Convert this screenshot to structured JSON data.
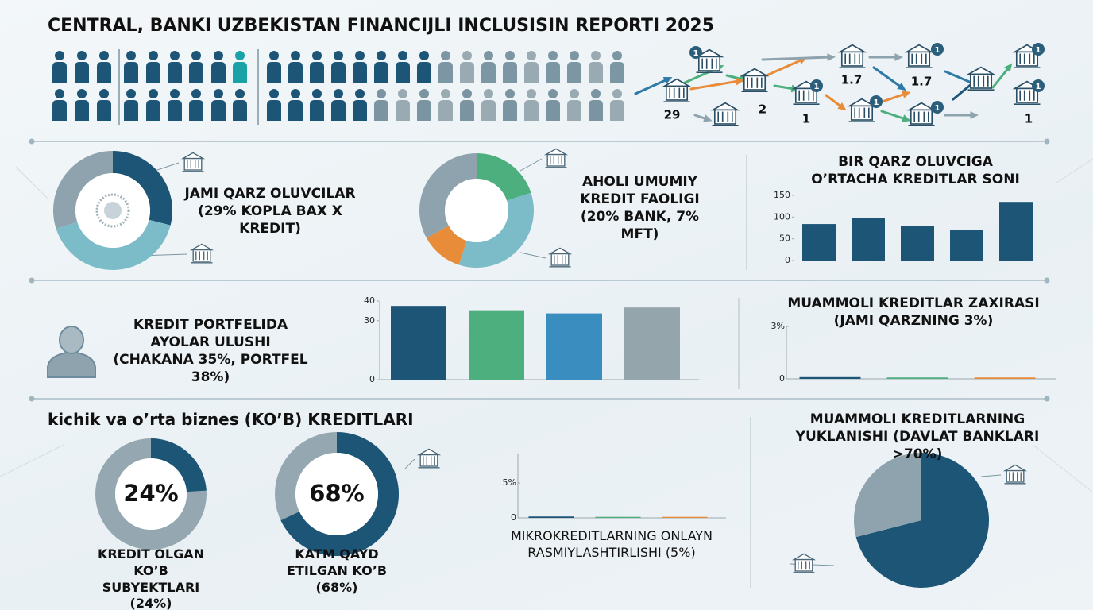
{
  "title": "CENTRAL, BANKI UZBEKISTAN FINANCIJLI INCLUSISIN REPORTI 2025",
  "network": {
    "labels": [
      "29",
      "2",
      "1",
      "1.7",
      "1.7",
      "1"
    ],
    "badges": [
      "1",
      "1",
      "1",
      "1",
      "1",
      "1",
      "1"
    ]
  },
  "section_heading": "kichik va o’rta biznes (KO’B) KREDITLARI",
  "chart_data": [
    {
      "type": "donut",
      "title": "JAMI QARZ OLUVCILAR (29% KOPLA BAX X KREDIT)",
      "values": [
        29,
        41,
        30
      ],
      "colors": [
        "#1d5577",
        "#7cbcc8",
        "#8ea3ad"
      ]
    },
    {
      "type": "donut",
      "title": "AHOLI UMUMIY KREDIT FAOLIGI (20% BANK, 7% MFT)",
      "values": [
        20,
        35,
        12,
        33
      ],
      "colors": [
        "#4caf7d",
        "#7cbcc8",
        "#e98c3a",
        "#8ea3ad"
      ]
    },
    {
      "type": "bar",
      "title": "BIR QARZ OLUVCIGA O’RTACHA KREDITLAR SONI",
      "values": [
        84,
        97,
        80,
        71,
        135
      ],
      "colors": [
        "#1d5577",
        "#1d5577",
        "#1d5577",
        "#1d5577",
        "#1d5577"
      ],
      "ylim": [
        0,
        150
      ],
      "yticks": [
        0,
        50,
        100,
        150
      ]
    },
    {
      "type": "bar",
      "title": "KREDIT PORTFELIDA AYOLAR ULUSHI (CHAKANA 35%, PORTFEL 38%)",
      "values": [
        37.5,
        35.3,
        33.7,
        36.7
      ],
      "colors": [
        "#1d5577",
        "#4caf7d",
        "#3a8dbf",
        "#95a5ac"
      ],
      "ylim": [
        0,
        40
      ],
      "yticks": [
        0,
        30,
        40
      ]
    },
    {
      "type": "bar",
      "title": "MUAMMOLI KREDITLAR ZAXIRASI (JAMI QARZNING 3%)",
      "values": [
        0.1,
        0.08,
        0.08
      ],
      "colors": [
        "#1d5577",
        "#4caf7d",
        "#e98c3a"
      ],
      "ylim": [
        0,
        3
      ],
      "yticks": [
        0,
        {
          "value": 3,
          "label": "3%"
        }
      ]
    },
    {
      "type": "gauge",
      "title": "KREDIT OLGAN KO’B SUBYEKTLARI (24%)",
      "values": [
        24
      ],
      "value_labels": [
        "24%"
      ],
      "colors": [
        "#1d5577"
      ],
      "track_color": "#95a8b1"
    },
    {
      "type": "gauge",
      "title": "KATM QAYD ETILGAN KO’B (68%)",
      "values": [
        68
      ],
      "value_labels": [
        "68%"
      ],
      "colors": [
        "#1d5577"
      ],
      "track_color": "#95a8b1"
    },
    {
      "type": "bar",
      "title": "MIKROKREDITLARNING ONLAYN RASMIYLASHTIRLISHI (5%)",
      "values": [
        0.2,
        0.15,
        0.15
      ],
      "colors": [
        "#1d5577",
        "#4caf7d",
        "#e98c3a"
      ],
      "ylim": [
        0,
        5
      ],
      "yticks": [
        0,
        {
          "value": 5,
          "label": "5%"
        }
      ]
    },
    {
      "type": "pie",
      "title": "MUAMMOLI KREDITLARNING YUKLANISHI (DAVLAT BANKLARI >70%)",
      "values": [
        71,
        29
      ],
      "colors": [
        "#1d5577",
        "#8ea3ad"
      ]
    }
  ]
}
